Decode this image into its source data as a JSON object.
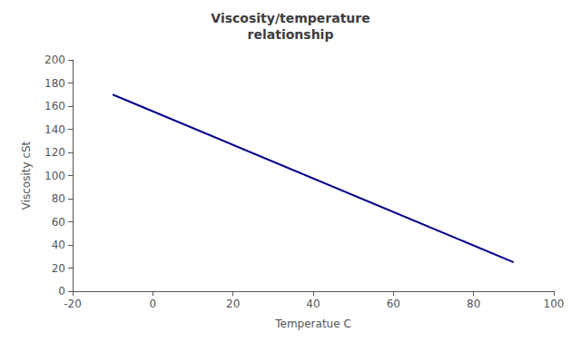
{
  "chart_data": {
    "type": "line",
    "title": "Viscosity/temperature\nrelationship",
    "xlabel": "Temperatue C",
    "ylabel": "Viscosity cSt",
    "x": [
      -10,
      90
    ],
    "values": [
      170,
      25
    ],
    "color": "#00008B",
    "xlim": [
      -20,
      100
    ],
    "ylim": [
      0,
      200
    ],
    "xticks": [
      -20,
      0,
      20,
      40,
      60,
      80,
      100
    ],
    "yticks": [
      0,
      20,
      40,
      60,
      80,
      100,
      120,
      140,
      160,
      180,
      200
    ],
    "grid": false
  }
}
